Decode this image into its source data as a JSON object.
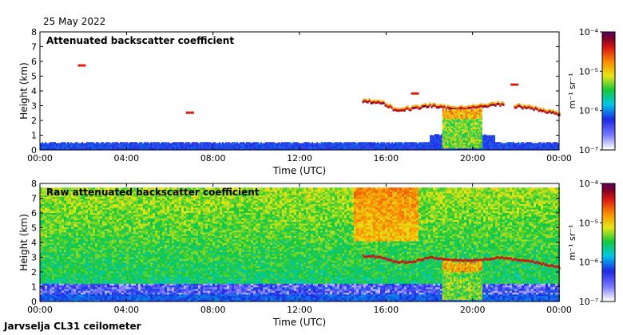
{
  "date": "25 May 2022",
  "footer": "Jarvselja CL31 ceilometer",
  "chart_data": [
    {
      "type": "heatmap",
      "title": "Attenuated backscatter coefficient",
      "xlabel": "Time (UTC)",
      "ylabel": "Height (km)",
      "x_ticks": [
        "00:00",
        "04:00",
        "08:00",
        "12:00",
        "16:00",
        "20:00",
        "00:00"
      ],
      "y_ticks": [
        0,
        1,
        2,
        3,
        4,
        5,
        6,
        7,
        8
      ],
      "ylim": [
        0,
        8
      ],
      "xlim_hours": [
        0,
        24
      ],
      "colorbar": {
        "label": "m⁻¹ sr⁻¹",
        "ticks": [
          "10⁻⁷",
          "10⁻⁶",
          "10⁻⁵",
          "10⁻⁴"
        ],
        "scale": "log"
      },
      "features": {
        "boundary_layer_top_km": 0.4,
        "cloud_layer": [
          {
            "t": 14.9,
            "h": 3.2
          },
          {
            "t": 15.8,
            "h": 3.1
          },
          {
            "t": 16.4,
            "h": 2.6
          },
          {
            "t": 17.2,
            "h": 2.7
          },
          {
            "t": 18.0,
            "h": 2.9
          },
          {
            "t": 19.0,
            "h": 2.7
          },
          {
            "t": 20.2,
            "h": 2.8
          },
          {
            "t": 21.2,
            "h": 3.0
          },
          {
            "t": 22.8,
            "h": 2.7
          },
          {
            "t": 24.0,
            "h": 2.3
          }
        ],
        "isolated_cloud_patches": [
          {
            "t": 1.9,
            "h": 5.7
          },
          {
            "t": 6.9,
            "h": 2.5
          },
          {
            "t": 17.3,
            "h": 3.8
          },
          {
            "t": 21.9,
            "h": 4.4
          }
        ],
        "precipitation_shaft_hours": [
          18.6,
          20.4
        ]
      }
    },
    {
      "type": "heatmap",
      "title": "Raw attenuated backscatter coefficient",
      "xlabel": "Time (UTC)",
      "ylabel": "Height (km)",
      "x_ticks": [
        "00:00",
        "04:00",
        "08:00",
        "12:00",
        "16:00",
        "20:00",
        "00:00"
      ],
      "y_ticks": [
        0,
        1,
        2,
        3,
        4,
        5,
        6,
        7,
        8
      ],
      "ylim": [
        0,
        8
      ],
      "xlim_hours": [
        0,
        24
      ],
      "colorbar": {
        "label": "m⁻¹ sr⁻¹",
        "ticks": [
          "10⁻⁷",
          "10⁻⁶",
          "10⁻⁵",
          "10⁻⁴"
        ],
        "scale": "log"
      },
      "features": {
        "noise_top_km": 7.6,
        "high_signal_hours": [
          14.5,
          17.5
        ],
        "cloud_layer": [
          {
            "t": 14.9,
            "h": 3.0
          },
          {
            "t": 15.8,
            "h": 2.9
          },
          {
            "t": 16.4,
            "h": 2.6
          },
          {
            "t": 17.2,
            "h": 2.6
          },
          {
            "t": 18.0,
            "h": 2.9
          },
          {
            "t": 19.0,
            "h": 2.7
          },
          {
            "t": 20.2,
            "h": 2.7
          },
          {
            "t": 21.2,
            "h": 2.9
          },
          {
            "t": 22.8,
            "h": 2.6
          },
          {
            "t": 24.0,
            "h": 2.2
          }
        ],
        "precipitation_shaft_hours": [
          18.6,
          20.4
        ]
      }
    }
  ]
}
